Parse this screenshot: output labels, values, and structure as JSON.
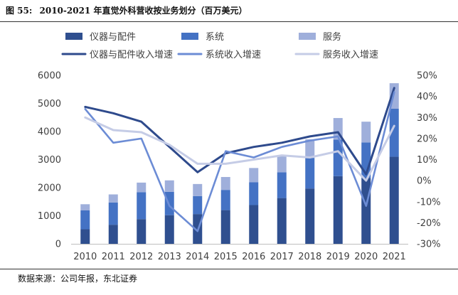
{
  "figure_label": "图 55:",
  "figure_title": "2010-2021 年直觉外科营收按业务划分（百万美元）",
  "source": "数据来源：公司年报，东北证券",
  "colors": {
    "instruments": "#2F4F8F",
    "systems": "#4472C4",
    "services": "#9FAFDB",
    "instruments_growth": "#2E4A8C",
    "systems_growth": "#6C8CD5",
    "services_growth": "#C5CCE6"
  },
  "chart_data": {
    "type": "bar",
    "stacked": true,
    "categories": [
      "2010",
      "2011",
      "2012",
      "2013",
      "2014",
      "2015",
      "2016",
      "2017",
      "2018",
      "2019",
      "2020",
      "2021"
    ],
    "series": [
      {
        "name": "仪器与配件",
        "type": "bar",
        "axis": "left",
        "values": [
          520,
          680,
          880,
          1020,
          1060,
          1200,
          1380,
          1630,
          1970,
          2410,
          2350,
          3100
        ]
      },
      {
        "name": "系统",
        "type": "bar",
        "axis": "left",
        "values": [
          670,
          790,
          960,
          830,
          640,
          720,
          810,
          920,
          1090,
          1300,
          1260,
          1710
        ]
      },
      {
        "name": "服务",
        "type": "bar",
        "axis": "left",
        "values": [
          220,
          290,
          340,
          410,
          430,
          460,
          510,
          580,
          660,
          770,
          740,
          910
        ]
      },
      {
        "name": "仪器与配件收入增速",
        "type": "line",
        "axis": "right",
        "values": [
          0.35,
          0.32,
          0.28,
          0.16,
          0.04,
          0.13,
          0.16,
          0.18,
          0.21,
          0.23,
          0.03,
          0.44
        ]
      },
      {
        "name": "系统收入增速",
        "type": "line",
        "axis": "right",
        "values": [
          0.34,
          0.18,
          0.2,
          -0.12,
          -0.24,
          0.14,
          0.11,
          0.16,
          0.19,
          0.21,
          -0.12,
          0.42
        ]
      },
      {
        "name": "服务收入增速",
        "type": "line",
        "axis": "right",
        "values": [
          0.3,
          0.24,
          0.23,
          0.17,
          0.08,
          0.08,
          0.1,
          0.12,
          0.11,
          0.14,
          0.0,
          0.26
        ]
      }
    ],
    "ylim_left": [
      0,
      6000
    ],
    "yticks_left": [
      0,
      1000,
      2000,
      3000,
      4000,
      5000,
      6000
    ],
    "ylim_right": [
      -0.3,
      0.5
    ],
    "yticks_right": [
      -0.3,
      -0.2,
      -0.1,
      0.0,
      0.1,
      0.2,
      0.3,
      0.4,
      0.5
    ],
    "ytick_labels_right": [
      "-30%",
      "-20%",
      "-10%",
      "0%",
      "10%",
      "20%",
      "30%",
      "40%",
      "50%"
    ],
    "legend": [
      {
        "label": "仪器与配件",
        "kind": "bar",
        "series_index": 0
      },
      {
        "label": "系统",
        "kind": "bar",
        "series_index": 1
      },
      {
        "label": "服务",
        "kind": "bar",
        "series_index": 2
      },
      {
        "label": "仪器与配件收入增速",
        "kind": "line",
        "series_index": 3
      },
      {
        "label": "系统收入增速",
        "kind": "line",
        "series_index": 4
      },
      {
        "label": "服务收入增速",
        "kind": "line",
        "series_index": 5
      }
    ],
    "legend_position": "top",
    "grid": false
  }
}
